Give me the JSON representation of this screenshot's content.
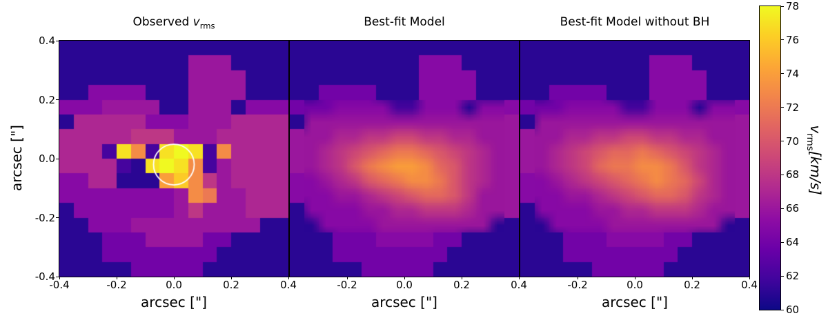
{
  "panels": [
    {
      "id": "observed",
      "title_prefix": "Observed ",
      "title_var": "v",
      "title_sub": "rms",
      "xlabel": "arcsec [\"]",
      "xticks": [
        "-0.4",
        "-0.2",
        "0.0",
        "0.2",
        "0.4"
      ]
    },
    {
      "id": "model",
      "title": "Best-fit Model",
      "xlabel": "arcsec [\"]",
      "xticks": [
        "-0.2",
        "0.0",
        "0.2",
        "0.4"
      ]
    },
    {
      "id": "model_no_bh",
      "title": "Best-fit Model without BH",
      "xlabel": "arcsec [\"]",
      "xticks": [
        "-0.2",
        "0.0",
        "0.2",
        "0.4"
      ]
    }
  ],
  "yaxis": {
    "label": "arcsec [\"]",
    "ticks": [
      "0.4",
      "0.2",
      "0.0",
      "-0.2",
      "-0.4"
    ]
  },
  "colorbar": {
    "vmin": 60,
    "vmax": 78,
    "ticks": [
      "78",
      "76",
      "74",
      "72",
      "70",
      "68",
      "66",
      "64",
      "62",
      "60"
    ],
    "label_var": "v",
    "label_sub": "rms",
    "label_units": "[km/s]"
  },
  "chart_data": {
    "type": "heatmap",
    "title": "Observed v_rms compared to best-fit dynamical models",
    "x_range": [
      -0.4,
      0.4
    ],
    "y_range": [
      -0.4,
      0.4
    ],
    "xlabel": "arcsec [\"]",
    "ylabel": "arcsec [\"]",
    "value_units": "km/s",
    "value_range": [
      60,
      78
    ],
    "colormap": "plasma",
    "colormap_stops": [
      "#0d0887",
      "#41049d",
      "#6a00a8",
      "#8f0da4",
      "#b12a90",
      "#cc4778",
      "#e16462",
      "#f2844b",
      "#fca636",
      "#fcce25",
      "#f0f921"
    ],
    "grid_size": [
      16,
      16
    ],
    "panels": [
      {
        "name": "Observed v_rms",
        "smooth": false,
        "overlay_circle": {
          "x": 0.0,
          "y": -0.02,
          "radius": 0.07,
          "color": "#ffffff"
        },
        "values": [
          [
            61,
            61,
            61,
            61,
            61,
            61,
            61,
            61,
            61,
            61,
            61,
            61,
            61,
            61,
            61,
            61
          ],
          [
            61,
            61,
            61,
            61,
            61,
            61,
            61,
            61,
            61,
            66,
            66,
            66,
            61,
            61,
            61,
            61
          ],
          [
            61,
            61,
            61,
            61,
            61,
            61,
            61,
            61,
            61,
            66,
            66,
            66,
            66,
            61,
            61,
            61
          ],
          [
            61,
            61,
            65,
            65,
            65,
            65,
            61,
            61,
            61,
            66,
            66,
            66,
            66,
            61,
            61,
            61
          ],
          [
            65,
            65,
            65,
            66,
            66,
            66,
            66,
            61,
            61,
            66,
            66,
            66,
            61,
            65,
            65,
            65
          ],
          [
            61,
            67,
            67,
            67,
            67,
            67,
            65,
            65,
            65,
            66,
            66,
            66,
            67,
            67,
            67,
            67
          ],
          [
            67,
            67,
            67,
            67,
            67,
            68,
            68,
            68,
            66,
            66,
            66,
            67,
            67,
            67,
            67,
            67
          ],
          [
            67,
            67,
            67,
            62,
            77,
            73,
            62,
            77,
            78,
            77,
            62,
            73,
            67,
            67,
            67,
            67
          ],
          [
            67,
            67,
            67,
            67,
            62,
            61,
            77,
            78,
            77,
            73,
            62,
            66,
            67,
            67,
            67,
            67
          ],
          [
            65,
            65,
            67,
            67,
            61,
            61,
            61,
            74,
            76,
            73,
            68,
            66,
            67,
            67,
            67,
            67
          ],
          [
            65,
            65,
            65,
            65,
            65,
            65,
            65,
            65,
            66,
            73,
            72,
            66,
            66,
            67,
            67,
            67
          ],
          [
            61,
            65,
            65,
            65,
            65,
            65,
            65,
            65,
            66,
            68,
            66,
            66,
            66,
            67,
            67,
            67
          ],
          [
            61,
            61,
            65,
            65,
            65,
            66,
            66,
            66,
            66,
            66,
            66,
            66,
            66,
            66,
            61,
            61
          ],
          [
            61,
            61,
            61,
            64,
            64,
            64,
            66,
            66,
            66,
            66,
            64,
            64,
            61,
            61,
            61,
            61
          ],
          [
            61,
            61,
            61,
            64,
            64,
            64,
            64,
            64,
            64,
            64,
            64,
            61,
            61,
            61,
            61,
            61
          ],
          [
            61,
            61,
            61,
            61,
            61,
            64,
            64,
            64,
            64,
            64,
            61,
            61,
            61,
            61,
            61,
            61
          ]
        ]
      },
      {
        "name": "Best-fit Model",
        "smooth": true,
        "values": [
          [
            61,
            61,
            61,
            61,
            61,
            61,
            61,
            61,
            61,
            61,
            61,
            61,
            61,
            61,
            61,
            61
          ],
          [
            61,
            61,
            61,
            61,
            61,
            61,
            61,
            61,
            61,
            65,
            65,
            65,
            61,
            61,
            61,
            61
          ],
          [
            61,
            61,
            61,
            61,
            61,
            61,
            61,
            61,
            61,
            65,
            65,
            65,
            65,
            61,
            61,
            61
          ],
          [
            61,
            61,
            64,
            64,
            64,
            64,
            61,
            61,
            61,
            65,
            65,
            65,
            65,
            61,
            61,
            61
          ],
          [
            64,
            64,
            64,
            65,
            65,
            65,
            65,
            62,
            62,
            65,
            65,
            65,
            61,
            65,
            65,
            65
          ],
          [
            61,
            66,
            66,
            66,
            66,
            66,
            66,
            66,
            66,
            66,
            66,
            66,
            66,
            66,
            66,
            66
          ],
          [
            66,
            66,
            66,
            67,
            67,
            68,
            68,
            69,
            69,
            68,
            68,
            67,
            67,
            66,
            66,
            66
          ],
          [
            66,
            66,
            67,
            68,
            69,
            70,
            71,
            72,
            72,
            71,
            70,
            69,
            68,
            67,
            66,
            66
          ],
          [
            66,
            66,
            67,
            68,
            70,
            72,
            73,
            74,
            74,
            73,
            71,
            70,
            68,
            67,
            66,
            66
          ],
          [
            65,
            65,
            66,
            67,
            68,
            70,
            71,
            72,
            73,
            73,
            72,
            70,
            68,
            67,
            66,
            66
          ],
          [
            65,
            65,
            65,
            66,
            66,
            67,
            68,
            69,
            70,
            71,
            71,
            70,
            68,
            66,
            66,
            66
          ],
          [
            61,
            65,
            65,
            65,
            65,
            66,
            66,
            67,
            67,
            68,
            68,
            68,
            67,
            66,
            66,
            66
          ],
          [
            61,
            61,
            65,
            65,
            65,
            65,
            66,
            66,
            66,
            66,
            66,
            66,
            66,
            66,
            61,
            61
          ],
          [
            61,
            61,
            61,
            64,
            64,
            64,
            65,
            65,
            65,
            65,
            64,
            64,
            61,
            61,
            61,
            61
          ],
          [
            61,
            61,
            61,
            64,
            64,
            64,
            64,
            64,
            64,
            64,
            64,
            61,
            61,
            61,
            61,
            61
          ],
          [
            61,
            61,
            61,
            61,
            61,
            64,
            64,
            64,
            64,
            64,
            61,
            61,
            61,
            61,
            61,
            61
          ]
        ]
      },
      {
        "name": "Best-fit Model without BH",
        "smooth": true,
        "values": [
          [
            61,
            61,
            61,
            61,
            61,
            61,
            61,
            61,
            61,
            61,
            61,
            61,
            61,
            61,
            61,
            61
          ],
          [
            61,
            61,
            61,
            61,
            61,
            61,
            61,
            61,
            61,
            65,
            65,
            65,
            61,
            61,
            61,
            61
          ],
          [
            61,
            61,
            61,
            61,
            61,
            61,
            61,
            61,
            61,
            65,
            65,
            65,
            65,
            61,
            61,
            61
          ],
          [
            61,
            61,
            64,
            64,
            64,
            64,
            61,
            61,
            61,
            65,
            65,
            65,
            65,
            61,
            61,
            61
          ],
          [
            64,
            64,
            64,
            65,
            65,
            65,
            65,
            62,
            62,
            65,
            65,
            65,
            61,
            65,
            65,
            65
          ],
          [
            61,
            66,
            66,
            66,
            66,
            66,
            66,
            66,
            66,
            66,
            66,
            66,
            66,
            66,
            66,
            66
          ],
          [
            66,
            66,
            66,
            67,
            67,
            68,
            68,
            69,
            69,
            68,
            68,
            67,
            67,
            66,
            66,
            66
          ],
          [
            66,
            66,
            67,
            68,
            69,
            70,
            71,
            71,
            72,
            71,
            70,
            69,
            68,
            67,
            66,
            66
          ],
          [
            66,
            66,
            67,
            68,
            69,
            71,
            72,
            72,
            73,
            73,
            72,
            70,
            68,
            67,
            66,
            66
          ],
          [
            65,
            65,
            66,
            67,
            68,
            69,
            70,
            71,
            72,
            73,
            72,
            71,
            69,
            67,
            66,
            66
          ],
          [
            65,
            65,
            65,
            66,
            66,
            67,
            68,
            69,
            70,
            71,
            71,
            70,
            68,
            67,
            66,
            66
          ],
          [
            61,
            65,
            65,
            65,
            65,
            66,
            66,
            67,
            67,
            68,
            68,
            68,
            67,
            66,
            66,
            66
          ],
          [
            61,
            61,
            65,
            65,
            65,
            65,
            66,
            66,
            66,
            66,
            66,
            66,
            66,
            66,
            61,
            61
          ],
          [
            61,
            61,
            61,
            64,
            64,
            64,
            65,
            65,
            65,
            65,
            64,
            64,
            61,
            61,
            61,
            61
          ],
          [
            61,
            61,
            61,
            64,
            64,
            64,
            64,
            64,
            64,
            64,
            64,
            61,
            61,
            61,
            61,
            61
          ],
          [
            61,
            61,
            61,
            61,
            61,
            64,
            64,
            64,
            64,
            64,
            61,
            61,
            61,
            61,
            61,
            61
          ]
        ]
      }
    ]
  }
}
